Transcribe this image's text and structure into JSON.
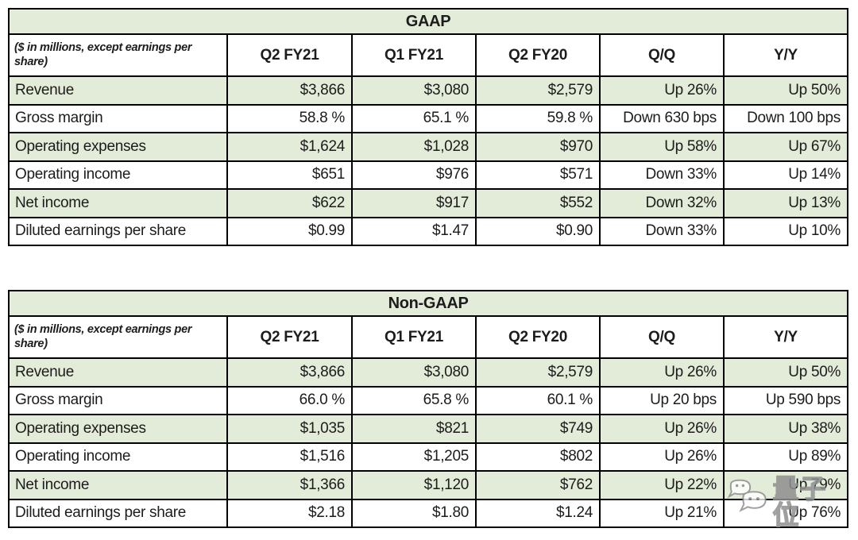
{
  "colors": {
    "row_green": "#e3ecd9",
    "row_white": "#ffffff",
    "border": "#000000",
    "text": "#1c1c1c"
  },
  "tables": [
    {
      "title": "GAAP",
      "corner_label": "($ in millions, except earnings per share)",
      "columns": [
        "Q2 FY21",
        "Q1 FY21",
        "Q2 FY20",
        "Q/Q",
        "Y/Y"
      ],
      "rows": [
        {
          "label": "Revenue",
          "values": [
            "$3,866",
            "$3,080",
            "$2,579",
            "Up 26%",
            "Up 50%"
          ]
        },
        {
          "label": "Gross margin",
          "values": [
            "58.8 %",
            "65.1 %",
            "59.8 %",
            "Down 630 bps",
            "Down 100 bps"
          ]
        },
        {
          "label": "Operating expenses",
          "values": [
            "$1,624",
            "$1,028",
            "$970",
            "Up 58%",
            "Up 67%"
          ]
        },
        {
          "label": "Operating income",
          "values": [
            "$651",
            "$976",
            "$571",
            "Down 33%",
            "Up 14%"
          ]
        },
        {
          "label": "Net income",
          "values": [
            "$622",
            "$917",
            "$552",
            "Down 32%",
            "Up 13%"
          ]
        },
        {
          "label": "Diluted earnings per share",
          "values": [
            "$0.99",
            "$1.47",
            "$0.90",
            "Down 33%",
            "Up 10%"
          ]
        }
      ]
    },
    {
      "title": "Non-GAAP",
      "corner_label": "($ in millions, except earnings per share)",
      "columns": [
        "Q2 FY21",
        "Q1 FY21",
        "Q2 FY20",
        "Q/Q",
        "Y/Y"
      ],
      "rows": [
        {
          "label": "Revenue",
          "values": [
            "$3,866",
            "$3,080",
            "$2,579",
            "Up 26%",
            "Up 50%"
          ]
        },
        {
          "label": "Gross margin",
          "values": [
            "66.0 %",
            "65.8 %",
            "60.1 %",
            "Up 20 bps",
            "Up 590 bps"
          ]
        },
        {
          "label": "Operating expenses",
          "values": [
            "$1,035",
            "$821",
            "$749",
            "Up 26%",
            "Up 38%"
          ]
        },
        {
          "label": "Operating income",
          "values": [
            "$1,516",
            "$1,205",
            "$802",
            "Up 26%",
            "Up 89%"
          ]
        },
        {
          "label": "Net income",
          "values": [
            "$1,366",
            "$1,120",
            "$762",
            "Up 22%",
            "Up 79%"
          ]
        },
        {
          "label": "Diluted earnings per share",
          "values": [
            "$2.18",
            "$1.80",
            "$1.24",
            "Up 21%",
            "Up 76%"
          ]
        }
      ]
    }
  ],
  "watermark": {
    "icon": "wechat-icon",
    "text": "量子位"
  }
}
